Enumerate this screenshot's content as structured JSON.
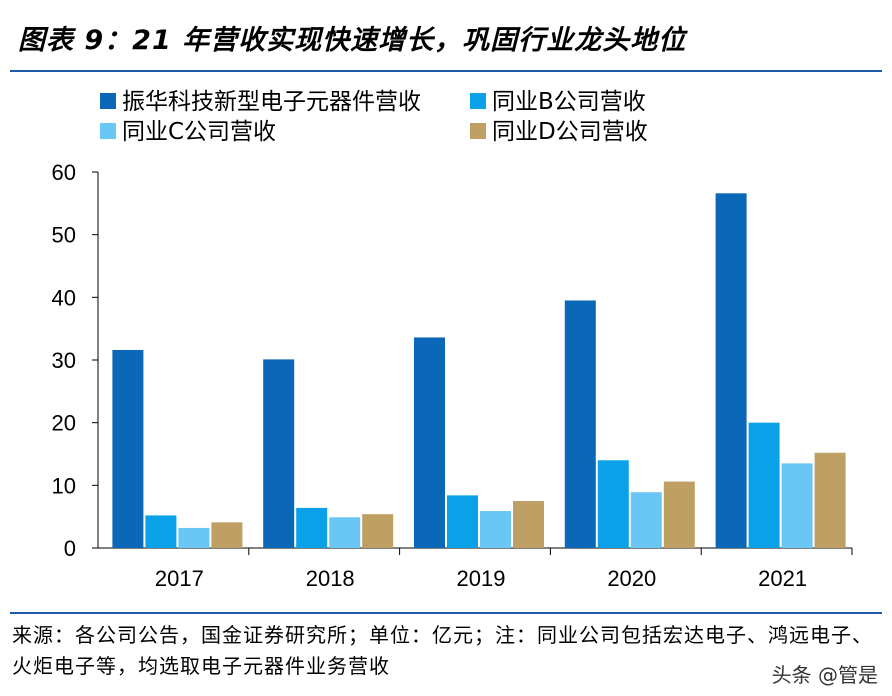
{
  "title": "图表 9：21 年营收实现快速增长，巩固行业龙头地位",
  "source_note": "来源：各公司公告，国金证券研究所；单位：亿元；注：同业公司包括宏达电子、鸿远电子、火炬电子等，均选取电子元器件业务营收",
  "watermark": "头条 @管是",
  "chart_data": {
    "type": "bar",
    "categories": [
      "2017",
      "2018",
      "2019",
      "2020",
      "2021"
    ],
    "series": [
      {
        "name": "振华科技新型电子元器件营收",
        "color": "#0b67b8",
        "values": [
          31.6,
          30.1,
          33.6,
          39.5,
          56.6
        ]
      },
      {
        "name": "同业B公司营收",
        "color": "#0aa1e8",
        "values": [
          5.2,
          6.4,
          8.4,
          14.0,
          20.0
        ]
      },
      {
        "name": "同业C公司营收",
        "color": "#6ac6f5",
        "values": [
          3.2,
          4.9,
          5.9,
          8.9,
          13.5
        ]
      },
      {
        "name": "同业D公司营收",
        "color": "#bfa064",
        "values": [
          4.1,
          5.4,
          7.5,
          10.6,
          15.2
        ]
      }
    ],
    "ylim": [
      0,
      60
    ],
    "yticks": [
      0,
      10,
      20,
      30,
      40,
      50,
      60
    ],
    "legend": "top-left",
    "grid": false
  }
}
